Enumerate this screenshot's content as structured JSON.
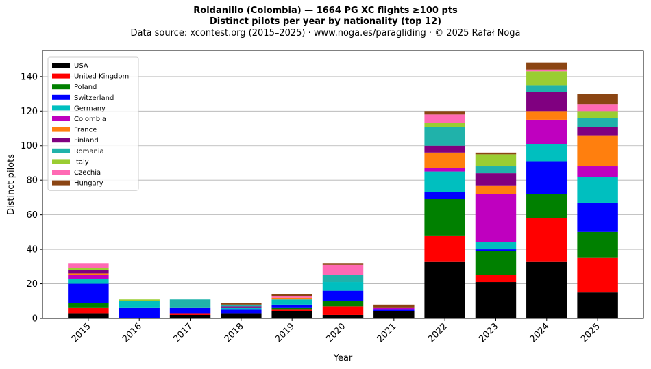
{
  "header": {
    "title": "Roldanillo (Colombia)  —  1664 PG XC flights ≥100 pts",
    "subtitle": "Distinct pilots per year by nationality (top 12)",
    "source": "Data source: xcontest.org (2015–2025)  ·  www.noga.es/paragliding  ·  © 2025 Rafał Noga"
  },
  "chart_data": {
    "type": "bar",
    "stacked": true,
    "xlabel": "Year",
    "ylabel": "Distinct pilots",
    "ylim": [
      0,
      155
    ],
    "yticks": [
      0,
      20,
      40,
      60,
      80,
      100,
      120,
      140
    ],
    "grid": "horizontal",
    "legend_position": "top-left",
    "categories": [
      "2015",
      "2016",
      "2017",
      "2018",
      "2019",
      "2020",
      "2021",
      "2022",
      "2023",
      "2024",
      "2025"
    ],
    "series": [
      {
        "name": "USA",
        "color": "#000000",
        "values": [
          3,
          0,
          2,
          3,
          4,
          2,
          4,
          33,
          21,
          33,
          15
        ]
      },
      {
        "name": "United Kingdom",
        "color": "#ff0000",
        "values": [
          3,
          0,
          1,
          0,
          1,
          5,
          0,
          15,
          4,
          25,
          20
        ]
      },
      {
        "name": "Poland",
        "color": "#008000",
        "values": [
          3,
          0,
          0,
          0,
          1,
          3,
          0,
          21,
          14,
          14,
          15
        ]
      },
      {
        "name": "Switzerland",
        "color": "#0000ff",
        "values": [
          11,
          6,
          3,
          2,
          2,
          6,
          1,
          4,
          1,
          19,
          17
        ]
      },
      {
        "name": "Germany",
        "color": "#00bfbf",
        "values": [
          3,
          4,
          0,
          1,
          3,
          5,
          0,
          12,
          4,
          10,
          15
        ]
      },
      {
        "name": "Colombia",
        "color": "#bf00bf",
        "values": [
          2,
          0,
          0,
          0,
          0,
          0,
          1,
          2,
          28,
          14,
          6
        ]
      },
      {
        "name": "France",
        "color": "#ff7f0e",
        "values": [
          1,
          0,
          0,
          0,
          1,
          0,
          0,
          9,
          5,
          5,
          18
        ]
      },
      {
        "name": "Finland",
        "color": "#800080",
        "values": [
          2,
          0,
          0,
          1,
          0,
          0,
          0,
          4,
          7,
          11,
          5
        ]
      },
      {
        "name": "Romania",
        "color": "#20b2aa",
        "values": [
          0,
          0,
          5,
          1,
          0,
          4,
          0,
          11,
          4,
          4,
          5
        ]
      },
      {
        "name": "Italy",
        "color": "#9acd32",
        "values": [
          1,
          1,
          0,
          0,
          0,
          0,
          0,
          2,
          7,
          8,
          4
        ]
      },
      {
        "name": "Czechia",
        "color": "#ff69b4",
        "values": [
          3,
          0,
          0,
          0,
          1,
          6,
          0,
          5,
          0,
          1,
          4
        ]
      },
      {
        "name": "Hungary",
        "color": "#8b4513",
        "values": [
          0,
          0,
          0,
          1,
          1,
          1,
          2,
          2,
          1,
          4,
          6
        ]
      }
    ]
  }
}
